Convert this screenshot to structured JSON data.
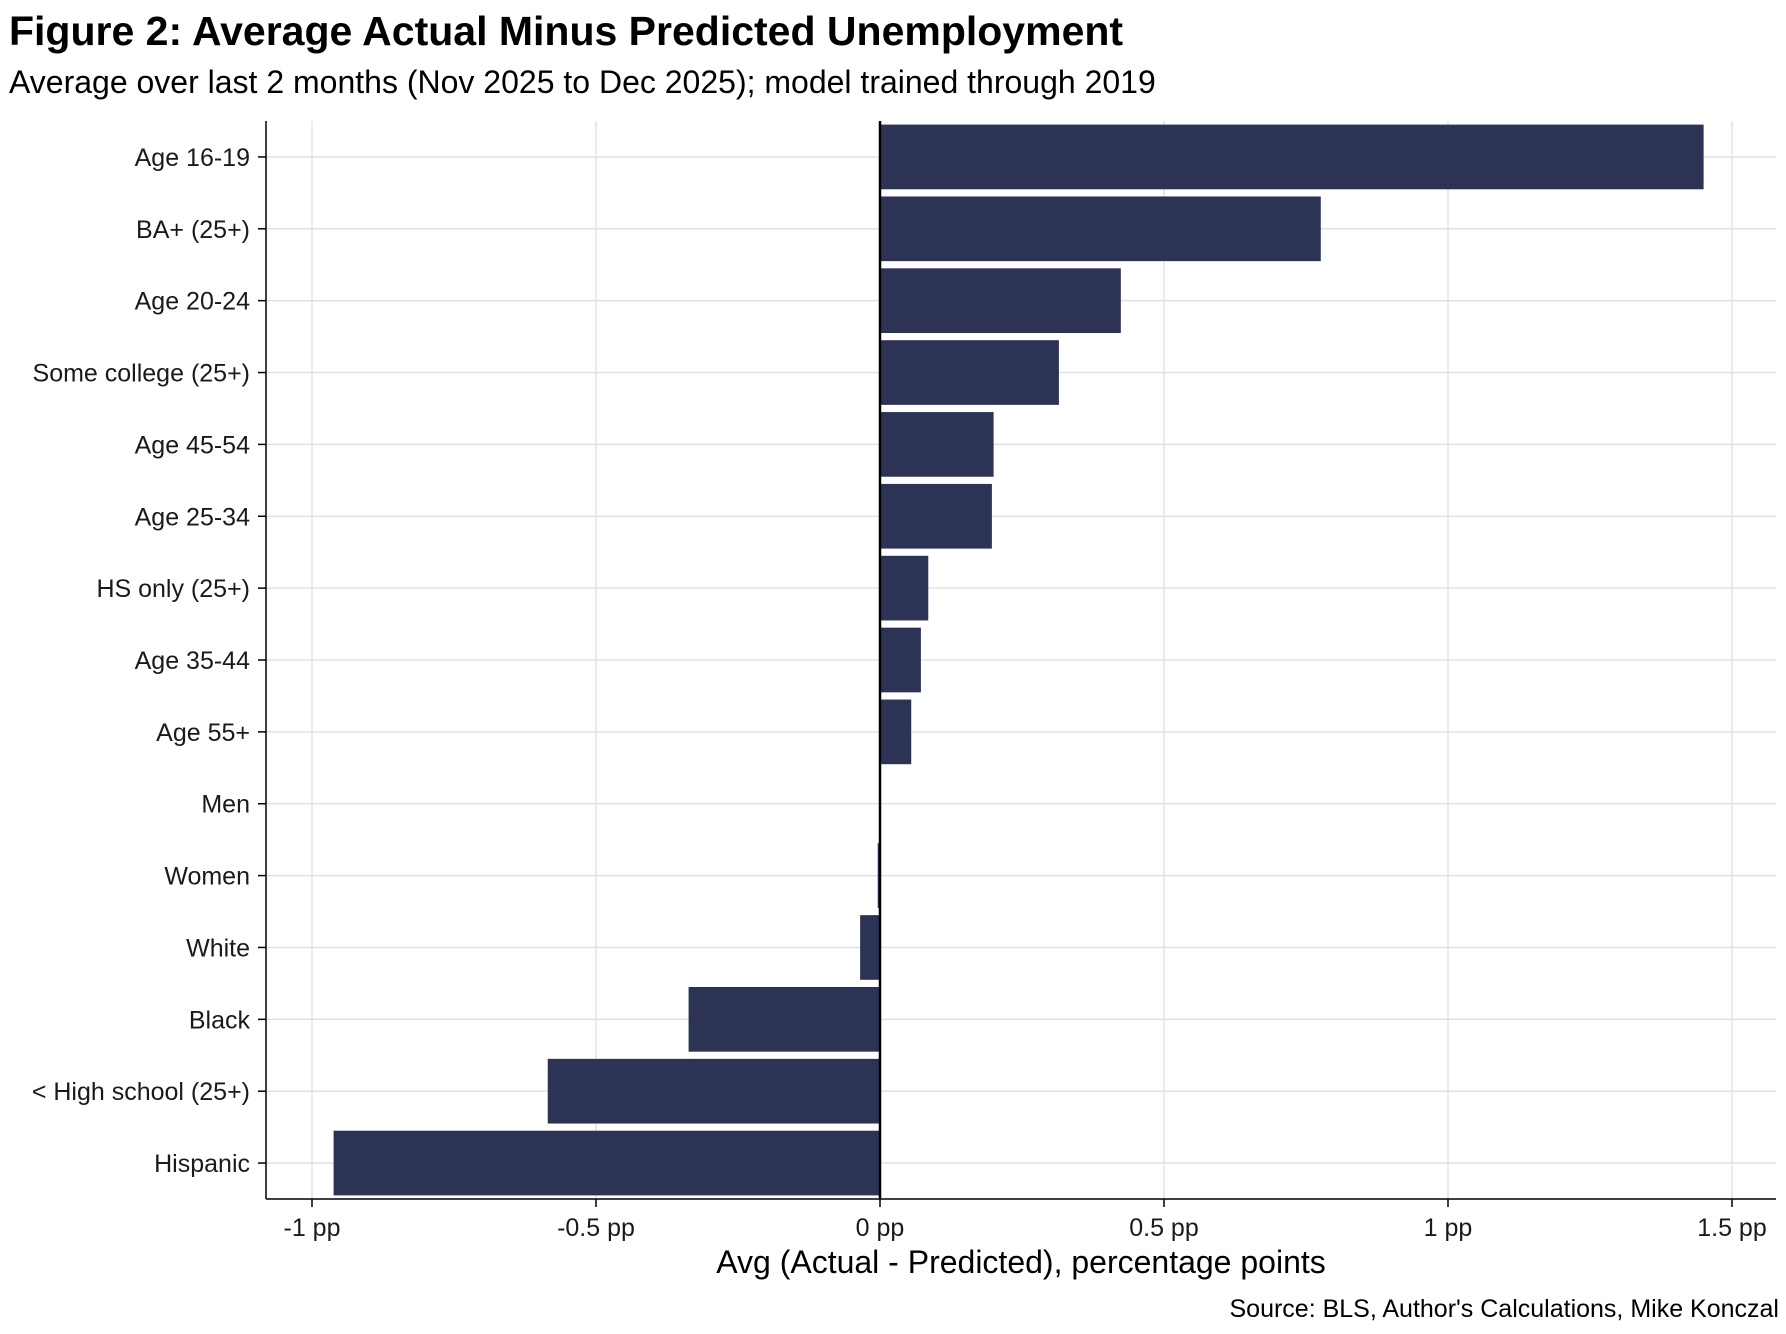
{
  "chart_data": {
    "type": "bar",
    "orientation": "horizontal",
    "title": "Figure 2: Average Actual Minus Predicted Unemployment",
    "subtitle": "Average over last 2 months (Nov 2025 to Dec 2025); model trained through 2019",
    "xlabel": "Avg (Actual - Predicted), percentage points",
    "ylabel": "",
    "caption": "Source: BLS, Author's Calculations, Mike Konczal",
    "xlim": [
      -1.08,
      1.58
    ],
    "xticks": [
      -1,
      -0.5,
      0,
      0.5,
      1,
      1.5
    ],
    "xtick_labels": [
      "-1 pp",
      "-0.5 pp",
      "0 pp",
      "0.5 pp",
      "1 pp",
      "1.5 pp"
    ],
    "categories": [
      "Age 16-19",
      "BA+ (25+)",
      "Age 20-24",
      "Some college (25+)",
      "Age 45-54",
      "Age 25-34",
      "HS only (25+)",
      "Age 35-44",
      "Age 55+",
      "Men",
      "Women",
      "White",
      "Black",
      "< High school (25+)",
      "Hispanic"
    ],
    "values": [
      1.45,
      0.776,
      0.424,
      0.315,
      0.2,
      0.197,
      0.085,
      0.072,
      0.055,
      0.0,
      -0.004,
      -0.035,
      -0.337,
      -0.585,
      -0.962
    ],
    "bar_color": "#2d3354",
    "grid": true,
    "legend": "none"
  }
}
